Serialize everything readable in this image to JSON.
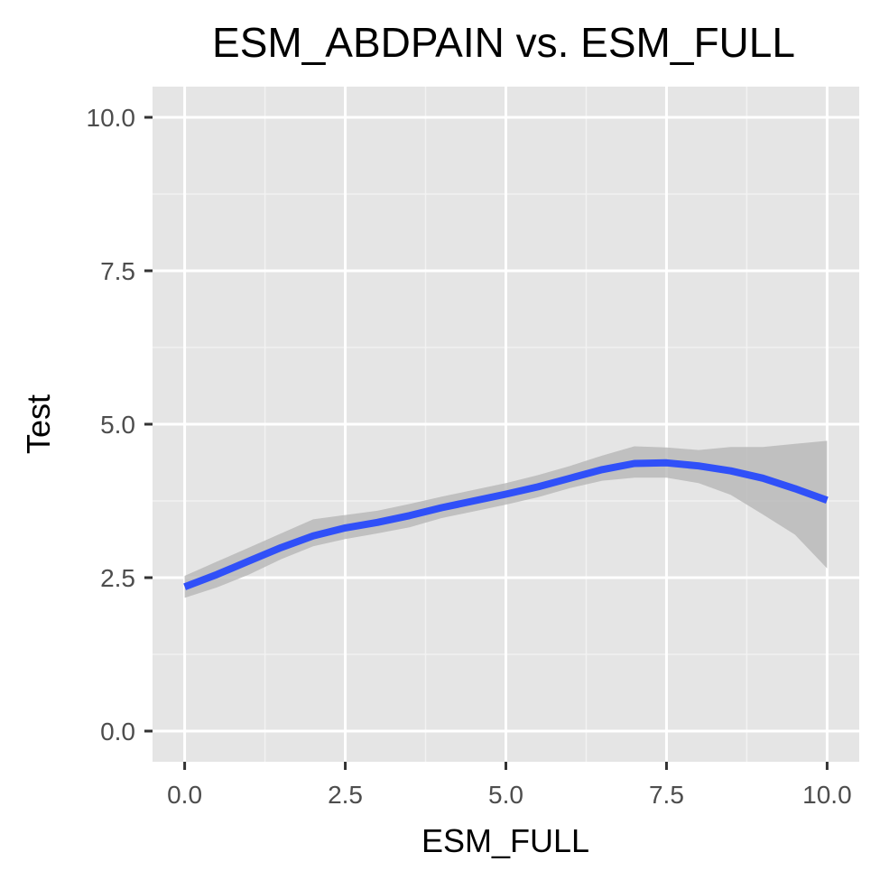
{
  "chart_data": {
    "type": "line",
    "title": "ESM_ABDPAIN vs. ESM_FULL",
    "xlabel": "ESM_FULL",
    "ylabel": "Test",
    "xlim": [
      -0.5,
      10.5
    ],
    "ylim": [
      -0.5,
      10.5
    ],
    "x_ticks": [
      0.0,
      2.5,
      5.0,
      7.5,
      10.0
    ],
    "x_tick_labels": [
      "0.0",
      "2.5",
      "5.0",
      "7.5",
      "10.0"
    ],
    "y_ticks": [
      0.0,
      2.5,
      5.0,
      7.5,
      10.0
    ],
    "y_tick_labels": [
      "0.0",
      "2.5",
      "5.0",
      "7.5",
      "10.0"
    ],
    "grid": true,
    "series": [
      {
        "color": "#3050f8",
        "band_color": "#b3b3b3",
        "x": [
          0.0,
          0.5,
          1.0,
          1.5,
          2.0,
          2.5,
          3.0,
          3.5,
          4.0,
          4.5,
          5.0,
          5.5,
          6.0,
          6.5,
          7.0,
          7.5,
          8.0,
          8.5,
          9.0,
          9.5,
          10.0
        ],
        "y": [
          2.35,
          2.55,
          2.77,
          2.99,
          3.18,
          3.31,
          3.4,
          3.51,
          3.64,
          3.75,
          3.86,
          3.98,
          4.12,
          4.26,
          4.36,
          4.37,
          4.32,
          4.24,
          4.12,
          3.95,
          3.76
        ],
        "lower": [
          2.17,
          2.34,
          2.55,
          2.8,
          3.01,
          3.13,
          3.22,
          3.32,
          3.47,
          3.58,
          3.69,
          3.81,
          3.96,
          4.08,
          4.13,
          4.13,
          4.04,
          3.85,
          3.53,
          3.2,
          2.65
        ],
        "upper": [
          2.53,
          2.76,
          2.99,
          3.22,
          3.45,
          3.52,
          3.59,
          3.7,
          3.82,
          3.93,
          4.04,
          4.17,
          4.32,
          4.49,
          4.64,
          4.62,
          4.58,
          4.63,
          4.63,
          4.68,
          4.73
        ]
      }
    ]
  }
}
